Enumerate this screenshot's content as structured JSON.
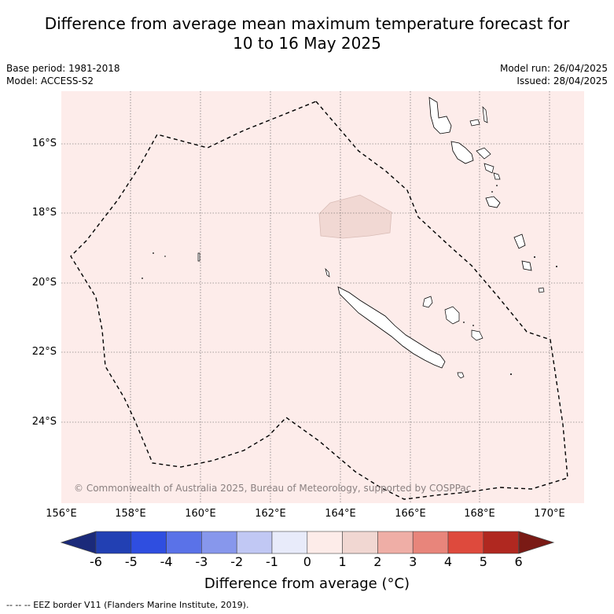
{
  "title_line1": "Difference from average mean maximum temperature forecast for",
  "title_line2": "10 to 16 May 2025",
  "base_period": "Base period: 1981-2018",
  "model": "Model: ACCESS-S2",
  "model_run": "Model run: 26/04/2025",
  "issued": "Issued: 28/04/2025",
  "copyright": "© Commonwealth of Australia 2025, Bureau of Meteorology, supported by COSPPac",
  "lat_labels": [
    "16°S",
    "18°S",
    "20°S",
    "22°S",
    "24°S"
  ],
  "lon_labels": [
    "156°E",
    "158°E",
    "160°E",
    "162°E",
    "164°E",
    "166°E",
    "168°E",
    "170°E"
  ],
  "colorbar": {
    "labels": [
      "-6",
      "-5",
      "-4",
      "-3",
      "-2",
      "-1",
      "0",
      "1",
      "2",
      "3",
      "4",
      "5",
      "6"
    ],
    "colors": [
      "#1b2a7a",
      "#2240b3",
      "#2f4ee0",
      "#5a72e8",
      "#8797ec",
      "#c1c8f4",
      "#e8ebfa",
      "#fdece9",
      "#f1d7d2",
      "#efaea6",
      "#e8857b",
      "#de4a3d",
      "#b02820",
      "#7a1a15"
    ],
    "title": "Difference from average (",
    "unit_symbol": "°C",
    "title_end": ")"
  },
  "map": {
    "background_color": "#fdecea",
    "anomaly_patch_color": "#f1d8d3"
  },
  "footnote": "-- -- -- EEZ border V11 (Flanders Marine Institute, 2019)."
}
